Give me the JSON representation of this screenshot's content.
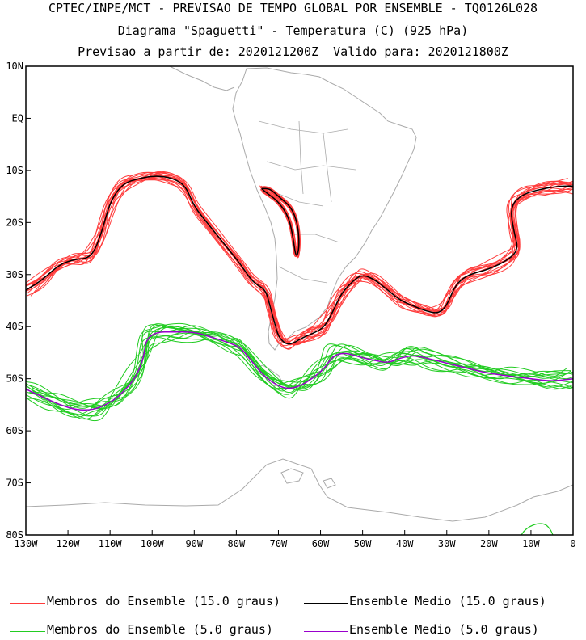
{
  "header": {
    "line1": "CPTEC/INPE/MCT - PREVISAO DE TEMPO GLOBAL POR ENSEMBLE - TQ0126L028",
    "line2": "Diagrama \"Spaguetti\" - Temperatura (C) (925 hPa)",
    "line3": "Previsao a partir de: 2020121200Z  Valido para: 2020121800Z"
  },
  "map": {
    "lat_ticks": [
      {
        "lat": 10,
        "label": "10N"
      },
      {
        "lat": 0,
        "label": "EQ"
      },
      {
        "lat": -10,
        "label": "10S"
      },
      {
        "lat": -20,
        "label": "20S"
      },
      {
        "lat": -30,
        "label": "30S"
      },
      {
        "lat": -40,
        "label": "40S"
      },
      {
        "lat": -50,
        "label": "50S"
      },
      {
        "lat": -60,
        "label": "60S"
      },
      {
        "lat": -70,
        "label": "70S"
      },
      {
        "lat": -80,
        "label": "80S"
      }
    ],
    "lon_ticks": [
      {
        "lon": -130,
        "label": "130W"
      },
      {
        "lon": -120,
        "label": "120W"
      },
      {
        "lon": -110,
        "label": "110W"
      },
      {
        "lon": -100,
        "label": "100W"
      },
      {
        "lon": -90,
        "label": "90W"
      },
      {
        "lon": -80,
        "label": "80W"
      },
      {
        "lon": -70,
        "label": "70W"
      },
      {
        "lon": -60,
        "label": "60W"
      },
      {
        "lon": -50,
        "label": "50W"
      },
      {
        "lon": -40,
        "label": "40W"
      },
      {
        "lon": -30,
        "label": "30W"
      },
      {
        "lon": -20,
        "label": "20W"
      },
      {
        "lon": -10,
        "label": "10W"
      },
      {
        "lon": 0,
        "label": "0"
      }
    ],
    "colors": {
      "members_15": "#ff3b3b",
      "mean_15": "#000000",
      "members_5": "#22cc22",
      "mean_5": "#9900cc",
      "coastline": "#aaaaaa"
    },
    "contour_15": [
      [
        -130,
        -33
      ],
      [
        -126,
        -31
      ],
      [
        -122,
        -28
      ],
      [
        -118,
        -27
      ],
      [
        -116,
        -27
      ],
      [
        -114,
        -26
      ],
      [
        -112,
        -22
      ],
      [
        -110,
        -16
      ],
      [
        -107,
        -12.5
      ],
      [
        -103,
        -11.5
      ],
      [
        -99,
        -11
      ],
      [
        -95,
        -11.5
      ],
      [
        -92,
        -13
      ],
      [
        -90,
        -17
      ],
      [
        -86,
        -21
      ],
      [
        -82,
        -25
      ],
      [
        -79,
        -28
      ],
      [
        -76.5,
        -31
      ],
      [
        -75,
        -32
      ],
      [
        -73,
        -33
      ],
      [
        -72,
        -36
      ],
      [
        -71,
        -39
      ],
      [
        -70,
        -42
      ],
      [
        -68,
        -43.5
      ],
      [
        -66,
        -43
      ],
      [
        -64,
        -42
      ],
      [
        -61,
        -41
      ],
      [
        -59,
        -40
      ],
      [
        -57,
        -37
      ],
      [
        -55,
        -33.5
      ],
      [
        -52,
        -31
      ],
      [
        -50,
        -30
      ],
      [
        -47,
        -31
      ],
      [
        -44,
        -33
      ],
      [
        -41,
        -35
      ],
      [
        -38,
        -36
      ],
      [
        -35,
        -37
      ],
      [
        -32,
        -37.5
      ],
      [
        -30,
        -36
      ],
      [
        -28,
        -32
      ],
      [
        -25,
        -30
      ],
      [
        -20,
        -29
      ],
      [
        -15,
        -27
      ],
      [
        -13,
        -25
      ],
      [
        -14,
        -22
      ],
      [
        -15,
        -17
      ],
      [
        -12,
        -14.5
      ],
      [
        -7,
        -13.5
      ],
      [
        -3,
        -13
      ],
      [
        0,
        -13
      ]
    ],
    "contour_15_andes": [
      [
        -74,
        -13.5
      ],
      [
        -72,
        -13.5
      ],
      [
        -70,
        -15
      ],
      [
        -67,
        -17
      ],
      [
        -65.5,
        -20
      ],
      [
        -65,
        -24
      ],
      [
        -65.5,
        -26.5
      ],
      [
        -66,
        -26
      ],
      [
        -66.5,
        -23
      ],
      [
        -67.5,
        -19
      ],
      [
        -70,
        -16
      ],
      [
        -72.5,
        -14.5
      ],
      [
        -74,
        -13.5
      ]
    ],
    "contour_5": [
      [
        -130,
        -52
      ],
      [
        -126,
        -53.5
      ],
      [
        -122,
        -55
      ],
      [
        -118,
        -56
      ],
      [
        -114,
        -56
      ],
      [
        -111,
        -55
      ],
      [
        -108,
        -53.5
      ],
      [
        -104,
        -50
      ],
      [
        -102,
        -46
      ],
      [
        -101.5,
        -42.5
      ],
      [
        -99,
        -41
      ],
      [
        -95,
        -41
      ],
      [
        -90,
        -41
      ],
      [
        -86,
        -42
      ],
      [
        -82,
        -43
      ],
      [
        -79,
        -44
      ],
      [
        -77,
        -46
      ],
      [
        -74,
        -49
      ],
      [
        -71,
        -51
      ],
      [
        -68,
        -52
      ],
      [
        -65,
        -51.5
      ],
      [
        -62,
        -50
      ],
      [
        -59,
        -48
      ],
      [
        -57,
        -45.5
      ],
      [
        -54,
        -45
      ],
      [
        -50,
        -46
      ],
      [
        -47,
        -46.5
      ],
      [
        -44,
        -47
      ],
      [
        -41,
        -46
      ],
      [
        -38,
        -45.5
      ],
      [
        -35,
        -46
      ],
      [
        -30,
        -47
      ],
      [
        -25,
        -48
      ],
      [
        -20,
        -49
      ],
      [
        -15,
        -49.5
      ],
      [
        -10,
        -50
      ],
      [
        -5,
        -50.5
      ],
      [
        0,
        -50
      ]
    ],
    "member_count": 14
  },
  "legend": {
    "members_15": "Membros do Ensemble (15.0 graus)",
    "mean_15": "Ensemble Medio (15.0 graus)",
    "members_5": "Membros do Ensemble (5.0 graus)",
    "mean_5": "Ensemble Medio (5.0 graus)"
  }
}
